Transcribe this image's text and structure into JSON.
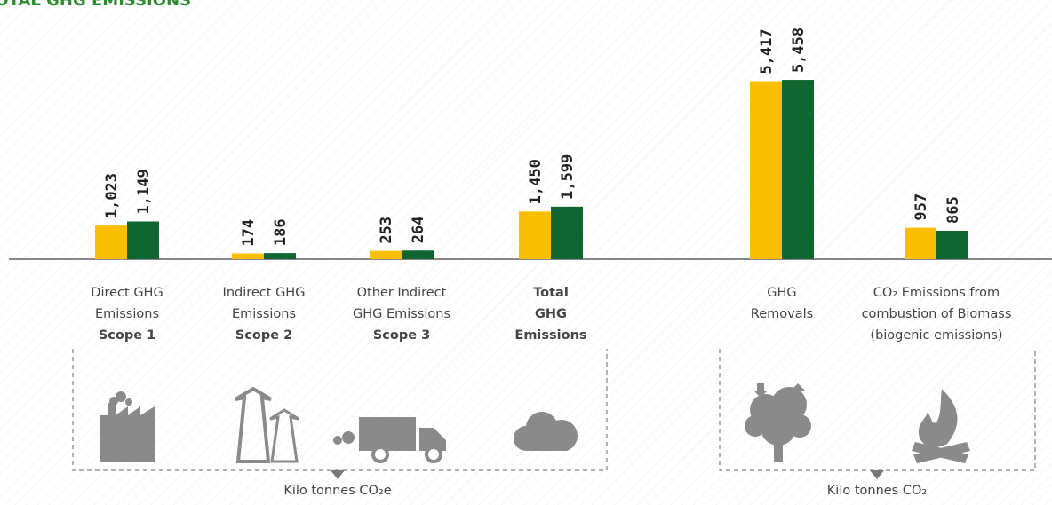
{
  "chart_data": {
    "type": "bar",
    "title": "TOTAL GHG EMISSIONS",
    "categories": [
      {
        "lines": [
          "Direct GHG",
          "Emissions"
        ],
        "strong": [
          "Scope 1"
        ]
      },
      {
        "lines": [
          "Indirect GHG",
          "Emissions"
        ],
        "strong": [
          "Scope 2"
        ]
      },
      {
        "lines": [
          "Other Indirect",
          "GHG Emissions"
        ],
        "strong": [
          "Scope 3"
        ]
      },
      {
        "lines": [],
        "strong": [
          "Total",
          "GHG",
          "Emissions"
        ]
      },
      {
        "lines": [
          "GHG",
          "Removals"
        ],
        "strong": []
      },
      {
        "lines": [
          "CO₂ Emissions from",
          "combustion of Biomass",
          "(biogenic emissions)"
        ],
        "strong": []
      }
    ],
    "series": [
      {
        "color": "#fbbf00",
        "values": [
          1023,
          174,
          253,
          1450,
          5417,
          957
        ],
        "value_labels": [
          "1,023",
          "174",
          "253",
          "1,450",
          "5,417",
          "957"
        ]
      },
      {
        "color": "#0f6630",
        "values": [
          1149,
          186,
          264,
          1599,
          5458,
          865
        ],
        "value_labels": [
          "1,149",
          "186",
          "264",
          "1,599",
          "5,458",
          "865"
        ]
      }
    ],
    "ylim": [
      0,
      6000
    ],
    "units": [
      "Kilo tonnes CO₂e",
      "Kilo tonnes CO₂"
    ]
  }
}
